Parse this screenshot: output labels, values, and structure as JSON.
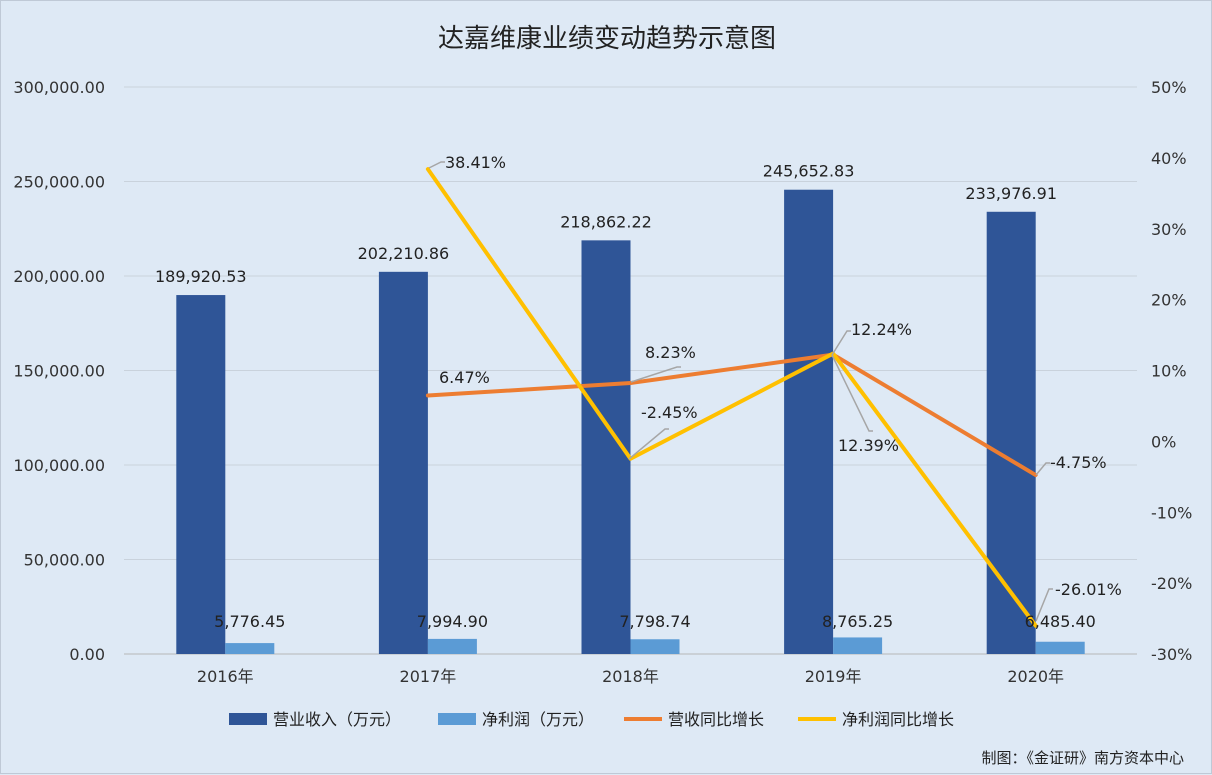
{
  "chart_data": {
    "type": "bar",
    "title": "达嘉维康业绩变动趋势示意图",
    "categories": [
      "2016年",
      "2017年",
      "2018年",
      "2019年",
      "2020年"
    ],
    "left_axis": {
      "ticks": [
        "0.00",
        "50,000.00",
        "100,000.00",
        "150,000.00",
        "200,000.00",
        "250,000.00",
        "300,000.00"
      ],
      "ylim": [
        0,
        300000
      ]
    },
    "right_axis": {
      "ticks": [
        "-30%",
        "-20%",
        "-10%",
        "0%",
        "10%",
        "20%",
        "30%",
        "40%",
        "50%"
      ],
      "ylim": [
        -30,
        50
      ]
    },
    "grid": true,
    "legend_position": "bottom",
    "series": [
      {
        "name": "营业收入（万元）",
        "kind": "bar",
        "axis": "left",
        "color": "#2f5597",
        "values": [
          189920.53,
          202210.86,
          218862.22,
          245652.83,
          233976.91
        ],
        "labels": [
          "189,920.53",
          "202,210.86",
          "218,862.22",
          "245,652.83",
          "233,976.91"
        ]
      },
      {
        "name": "净利润（万元）",
        "kind": "bar",
        "axis": "left",
        "color": "#5b9bd5",
        "values": [
          5776.45,
          7994.9,
          7798.74,
          8765.25,
          6485.4
        ],
        "labels": [
          "5,776.45",
          "7,994.90",
          "7,798.74",
          "8,765.25",
          "6,485.40"
        ]
      },
      {
        "name": "营收同比增长",
        "kind": "line",
        "axis": "right",
        "color": "#ed7d31",
        "values": [
          null,
          6.47,
          8.23,
          12.24,
          -4.75
        ],
        "labels": [
          "",
          "6.47%",
          "8.23%",
          "12.24%",
          "-4.75%"
        ]
      },
      {
        "name": "净利润同比增长",
        "kind": "line",
        "axis": "right",
        "color": "#ffc000",
        "values": [
          null,
          38.41,
          -2.45,
          12.39,
          -26.01
        ],
        "labels": [
          "",
          "38.41%",
          "-2.45%",
          "12.39%",
          "-26.01%"
        ]
      }
    ]
  },
  "credit": "制图：《金证研》南方资本中心"
}
